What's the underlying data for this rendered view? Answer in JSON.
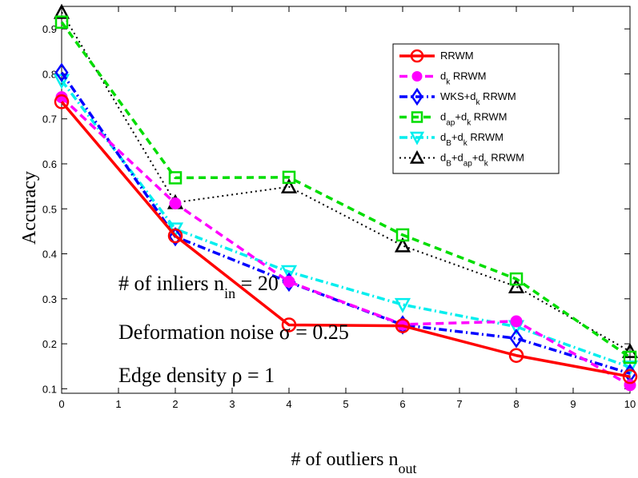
{
  "chart_data": {
    "type": "line",
    "title": "",
    "xlabel": "# of outliers n",
    "xlabel_sub": "out",
    "ylabel": "Accuracy",
    "xlim": [
      0,
      10
    ],
    "ylim": [
      0.09,
      0.95
    ],
    "xticks": [
      0,
      1,
      2,
      3,
      4,
      5,
      6,
      7,
      8,
      9,
      10
    ],
    "yticks": [
      0.1,
      0.2,
      0.3,
      0.4,
      0.5,
      0.6,
      0.7,
      0.8,
      0.9
    ],
    "ytick_labels": [
      "0.1",
      "0.2",
      "0.3",
      "0.4",
      "0.5",
      "0.6",
      "0.7",
      "0.8",
      "0.9"
    ],
    "grid": false,
    "legend_position": "top-right",
    "x": [
      0,
      2,
      4,
      6,
      8,
      10
    ],
    "series": [
      {
        "name": "RRWM",
        "sub": "",
        "name2": "",
        "sub2": "",
        "name3": "",
        "values": [
          0.738,
          0.44,
          0.242,
          0.24,
          0.174,
          0.127
        ],
        "color": "#ff0000",
        "dash": "",
        "marker": "circle",
        "width": 3.5
      },
      {
        "name": "d",
        "sub": "k",
        "name2": " RRWM",
        "sub2": "",
        "name3": "",
        "values": [
          0.748,
          0.512,
          0.338,
          0.243,
          0.25,
          0.108
        ],
        "color": "#ff00ff",
        "dash": "10,6",
        "marker": "filled-circle",
        "width": 3.5
      },
      {
        "name": "WKS+d",
        "sub": "k",
        "name2": " RRWM",
        "sub2": "",
        "name3": "",
        "values": [
          0.803,
          0.438,
          0.337,
          0.242,
          0.212,
          0.134
        ],
        "color": "#0000ff",
        "dash": "10,4,2,4",
        "marker": "diamond",
        "width": 3.5
      },
      {
        "name": "d",
        "sub": "ap",
        "name2": "+d",
        "sub2": "k",
        "name3": " RRWM",
        "values": [
          0.915,
          0.569,
          0.57,
          0.442,
          0.344,
          0.17
        ],
        "color": "#00dd00",
        "dash": "9,6",
        "marker": "square",
        "width": 3.5
      },
      {
        "name": "d",
        "sub": "B",
        "name2": "+d",
        "sub2": "k",
        "name3": " RRWM",
        "values": [
          0.785,
          0.455,
          0.36,
          0.287,
          0.238,
          0.148
        ],
        "color": "#00eeee",
        "dash": "10,4,2,4",
        "marker": "triangle-down",
        "width": 3.5
      },
      {
        "name": "d",
        "sub": "B",
        "name2": "+d",
        "sub2": "ap",
        "name3": "+d",
        "sub3": "k",
        "name4": " RRWM",
        "values": [
          0.937,
          0.514,
          0.549,
          0.418,
          0.327,
          0.183
        ],
        "color": "#000000",
        "dash": "2,4",
        "marker": "triangle-up",
        "width": 2
      }
    ],
    "annotations": [
      {
        "text": "# of inliers n",
        "sub": "in",
        "text2": " = 20"
      },
      {
        "text": "Deformation noise σ = 0.25",
        "sub": "",
        "text2": ""
      },
      {
        "text": "Edge density ρ = 1",
        "sub": "",
        "text2": ""
      }
    ]
  }
}
